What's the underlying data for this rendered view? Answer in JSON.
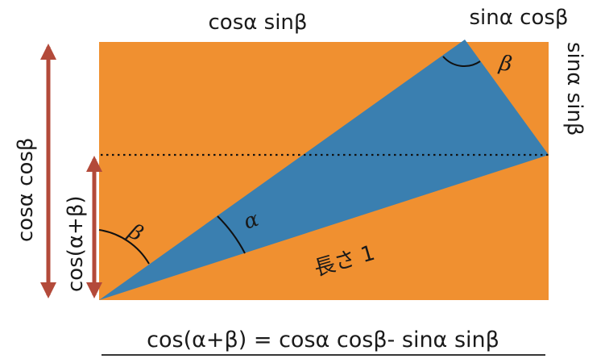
{
  "labels": {
    "top": "cosα sinβ",
    "top_right": "sinα cosβ",
    "right_vertical": "sinα sinβ",
    "left_outer": "cosα cosβ",
    "left_inner": "cos(α+β)",
    "hypotenuse": "長さ 1",
    "angle_alpha": "α",
    "angle_beta_bottom": "β",
    "angle_beta_top": "β"
  },
  "formula": "cos(α+β) = cosα cosβ- sinα sinβ",
  "colors": {
    "rectangle_fill": "#f09030",
    "triangle_fill": "#3a7fb0",
    "arrow": "#b34a3a",
    "dotted_line": "#111111",
    "text": "#1a1a1a"
  }
}
